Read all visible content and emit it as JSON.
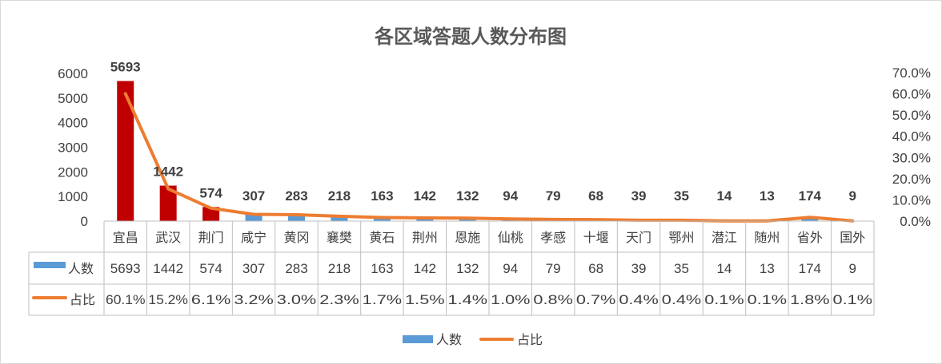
{
  "chart_data": {
    "type": "bar",
    "title": "各区域答题人数分布图",
    "categories": [
      "宜昌",
      "武汉",
      "荆门",
      "咸宁",
      "黄冈",
      "襄樊",
      "黄石",
      "荆州",
      "恩施",
      "仙桃",
      "孝感",
      "十堰",
      "天门",
      "鄂州",
      "潜江",
      "随州",
      "省外",
      "国外"
    ],
    "series": [
      {
        "name": "人数",
        "type": "bar",
        "axis": "left",
        "color": "#5b9bd5",
        "highlight_color": "#c00000",
        "highlighted_categories": [
          "宜昌",
          "武汉",
          "荆门"
        ],
        "values": [
          5693,
          1442,
          574,
          307,
          283,
          218,
          163,
          142,
          132,
          94,
          79,
          68,
          39,
          35,
          14,
          13,
          174,
          9
        ],
        "labels": [
          "5693",
          "1442",
          "574",
          "307",
          "283",
          "218",
          "163",
          "142",
          "132",
          "94",
          "79",
          "68",
          "39",
          "35",
          "14",
          "13",
          "174",
          "9"
        ]
      },
      {
        "name": "占比",
        "type": "line",
        "axis": "right",
        "color": "#ed7d31",
        "values": [
          60.1,
          15.2,
          6.1,
          3.2,
          3.0,
          2.3,
          1.7,
          1.5,
          1.4,
          1.0,
          0.8,
          0.7,
          0.4,
          0.4,
          0.1,
          0.1,
          1.8,
          0.1
        ],
        "labels": [
          "60.1%",
          "15.2%",
          "6.1%",
          "3.2%",
          "3.0%",
          "2.3%",
          "1.7%",
          "1.5%",
          "1.4%",
          "1.0%",
          "0.8%",
          "0.7%",
          "0.4%",
          "0.4%",
          "0.1%",
          "0.1%",
          "1.8%",
          "0.1%"
        ]
      }
    ],
    "y_left": {
      "range": [
        0,
        6000
      ],
      "ticks": [
        "0",
        "1000",
        "2000",
        "3000",
        "4000",
        "5000",
        "6000"
      ]
    },
    "y_right": {
      "range": [
        0,
        70
      ],
      "ticks": [
        "0.0%",
        "10.0%",
        "20.0%",
        "30.0%",
        "40.0%",
        "50.0%",
        "60.0%",
        "70.0%"
      ]
    },
    "grid": false,
    "data_table": true,
    "legend_position": "bottom"
  }
}
